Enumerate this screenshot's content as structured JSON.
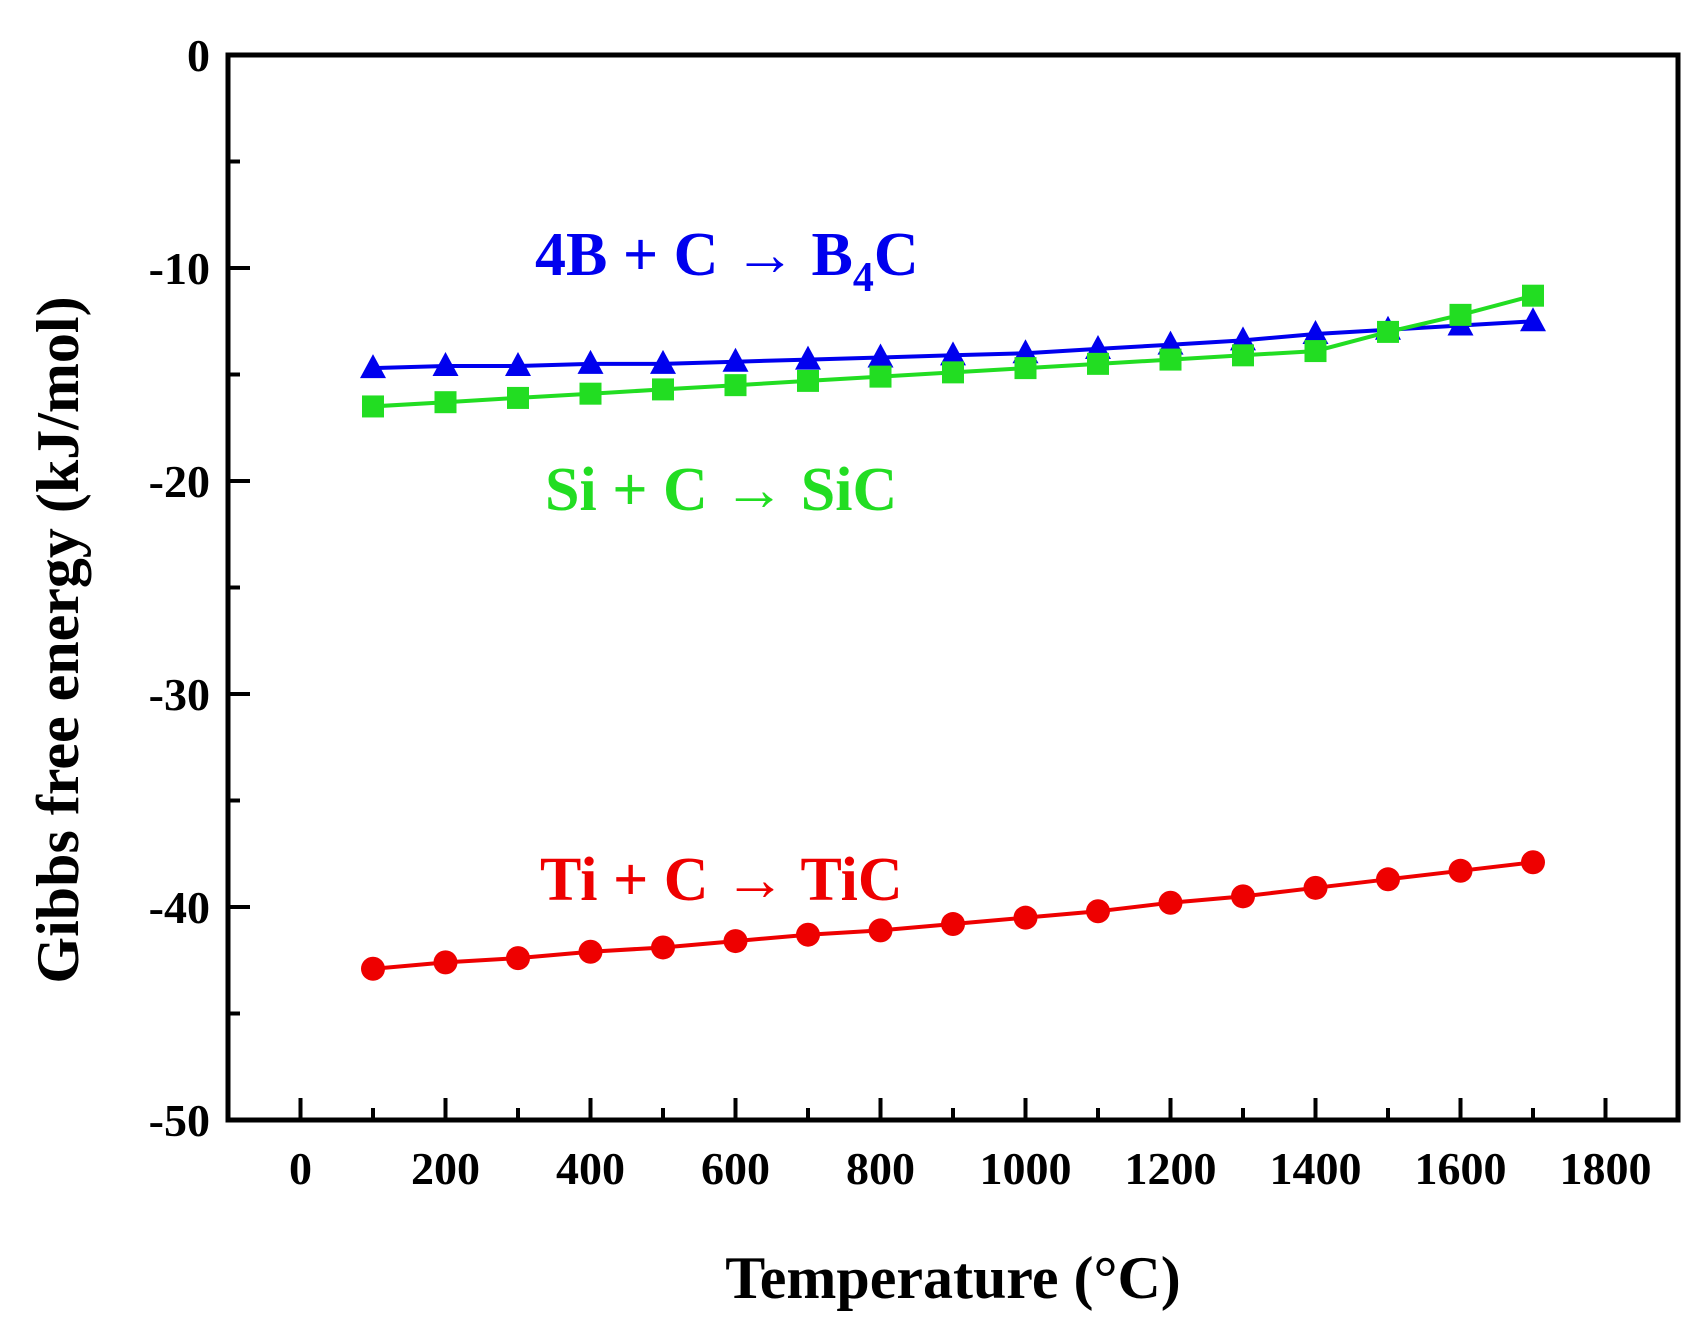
{
  "chart_data": {
    "type": "line",
    "title": "",
    "xlabel": "Temperature (°C)",
    "ylabel": "Gibbs free energy (kJ/mol)",
    "xlim": [
      -100,
      1900
    ],
    "ylim": [
      -50,
      0
    ],
    "xticks": [
      0,
      200,
      400,
      600,
      800,
      1000,
      1200,
      1400,
      1600,
      1800
    ],
    "yticks": [
      0,
      -10,
      -20,
      -30,
      -40,
      -50
    ],
    "x": [
      100,
      200,
      300,
      400,
      500,
      600,
      700,
      800,
      900,
      1000,
      1100,
      1200,
      1300,
      1400,
      1500,
      1600,
      1700
    ],
    "grid": false,
    "series": [
      {
        "name": "4B + C → B4C",
        "label_parts": {
          "pre": "4B + C → B",
          "sub": "4",
          "post": "C"
        },
        "marker": "triangle",
        "color": "#0000ee",
        "values": [
          -14.7,
          -14.6,
          -14.6,
          -14.5,
          -14.5,
          -14.4,
          -14.3,
          -14.2,
          -14.1,
          -14.0,
          -13.8,
          -13.6,
          -13.4,
          -13.1,
          -12.9,
          -12.7,
          -12.5
        ]
      },
      {
        "name": "Si + C → SiC",
        "label_parts": {
          "pre": "Si + C → SiC",
          "sub": "",
          "post": ""
        },
        "marker": "square",
        "color": "#22dd22",
        "values": [
          -16.5,
          -16.3,
          -16.1,
          -15.9,
          -15.7,
          -15.5,
          -15.3,
          -15.1,
          -14.9,
          -14.7,
          -14.5,
          -14.3,
          -14.1,
          -13.9,
          -13.0,
          -12.2,
          -11.3
        ]
      },
      {
        "name": "Ti + C → TiC",
        "label_parts": {
          "pre": "Ti + C → TiC",
          "sub": "",
          "post": ""
        },
        "marker": "circle",
        "color": "#ee0000",
        "values": [
          -42.9,
          -42.6,
          -42.4,
          -42.1,
          -41.9,
          -41.6,
          -41.3,
          -41.1,
          -40.8,
          -40.5,
          -40.2,
          -39.8,
          -39.5,
          -39.1,
          -38.7,
          -38.3,
          -37.9
        ]
      }
    ]
  }
}
